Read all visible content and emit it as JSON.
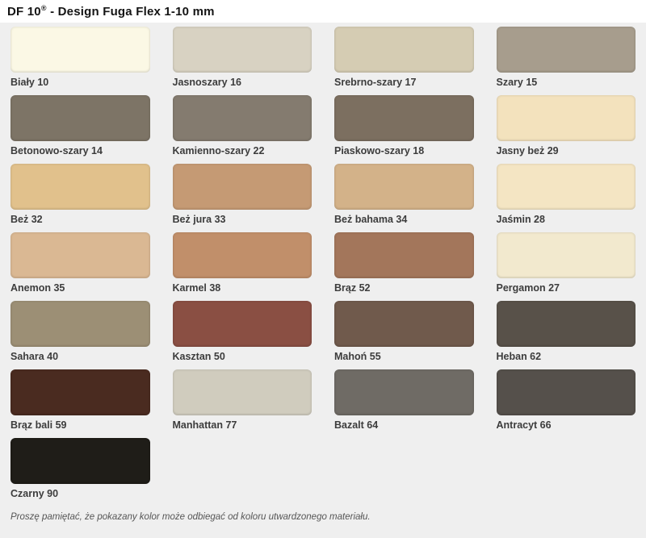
{
  "title": {
    "product": "DF 10",
    "registered": "®",
    "suffix": " - Design Fuga Flex 1-10 mm"
  },
  "footer_note": "Proszę pamiętać, że pokazany kolor może odbiegać od koloru utwardzonego materiału.",
  "colors": {
    "page_background": "#ffffff",
    "palette_background": "#efefef",
    "label_text": "#3c3c3c",
    "title_text": "#141414",
    "note_text": "#555555"
  },
  "palette": {
    "columns": 4,
    "swatches": [
      {
        "label": "Biały 10",
        "color": "#FBF8E5"
      },
      {
        "label": "Jasnoszary 16",
        "color": "#D8D2C2"
      },
      {
        "label": "Srebrno-szary 17",
        "color": "#D5CCB3"
      },
      {
        "label": "Szary 15",
        "color": "#A79D8D"
      },
      {
        "label": "Betonowo-szary 14",
        "color": "#7D7466"
      },
      {
        "label": "Kamienno-szary 22",
        "color": "#847B6F"
      },
      {
        "label": "Piaskowo-szary 18",
        "color": "#7C6F60"
      },
      {
        "label": "Jasny beż 29",
        "color": "#F3E2BD"
      },
      {
        "label": "Beż 32",
        "color": "#E1C18C"
      },
      {
        "label": "Beż jura 33",
        "color": "#C59A74"
      },
      {
        "label": "Beż bahama 34",
        "color": "#D3B289"
      },
      {
        "label": "Jaśmin 28",
        "color": "#F4E5C3"
      },
      {
        "label": "Anemon 35",
        "color": "#DAB893"
      },
      {
        "label": "Karmel 38",
        "color": "#C18F6A"
      },
      {
        "label": "Brąz 52",
        "color": "#A3765B"
      },
      {
        "label": "Pergamon 27",
        "color": "#F2E9CE"
      },
      {
        "label": "Sahara 40",
        "color": "#9C8F75"
      },
      {
        "label": "Kasztan 50",
        "color": "#8A4F43"
      },
      {
        "label": "Mahoń 55",
        "color": "#705A4C"
      },
      {
        "label": "Heban 62",
        "color": "#585149"
      },
      {
        "label": "Brąz bali 59",
        "color": "#4A2B20"
      },
      {
        "label": "Manhattan 77",
        "color": "#D0CCBE"
      },
      {
        "label": "Bazalt 64",
        "color": "#6F6B65"
      },
      {
        "label": "Antracyt 66",
        "color": "#55504B"
      },
      {
        "label": "Czarny 90",
        "color": "#1F1D18"
      }
    ]
  }
}
